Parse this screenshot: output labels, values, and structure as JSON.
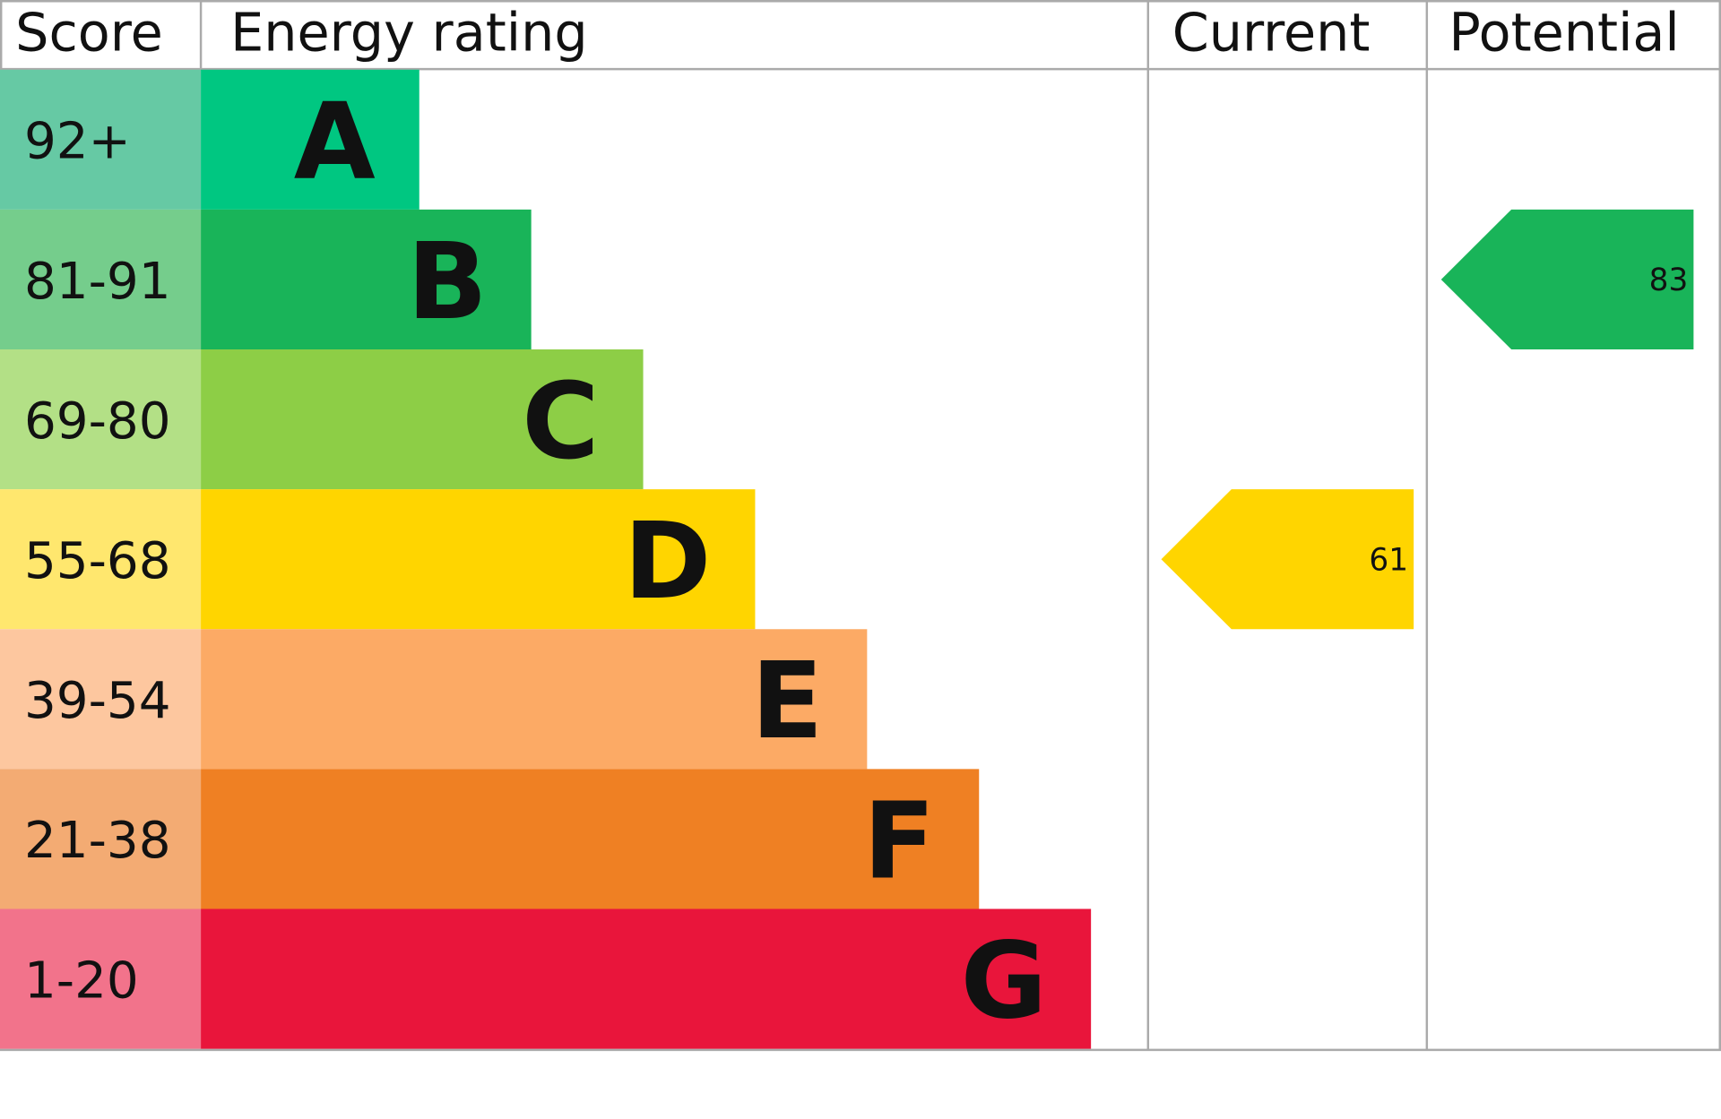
{
  "header": {
    "score": "Score",
    "energy_rating": "Energy rating",
    "current": "Current",
    "potential": "Potential"
  },
  "bands": [
    {
      "score": "92+",
      "letter": "A",
      "color": "#00c781",
      "score_color": "#66c9a4"
    },
    {
      "score": "81-91",
      "letter": "B",
      "color": "#19b459",
      "score_color": "#75cd8c"
    },
    {
      "score": "69-80",
      "letter": "C",
      "color": "#8dce46",
      "score_color": "#b3e086"
    },
    {
      "score": "55-68",
      "letter": "D",
      "color": "#ffd500",
      "score_color": "#ffe76e"
    },
    {
      "score": "39-54",
      "letter": "E",
      "color": "#fcaa65",
      "score_color": "#fdc79f"
    },
    {
      "score": "21-38",
      "letter": "F",
      "color": "#ef8023",
      "score_color": "#f3ab73"
    },
    {
      "score": "1-20",
      "letter": "G",
      "color": "#e9153b",
      "score_color": "#f2738b"
    }
  ],
  "current": {
    "value": 61,
    "color": "#ffd500"
  },
  "potential": {
    "value": 83,
    "color": "#19b459"
  }
}
